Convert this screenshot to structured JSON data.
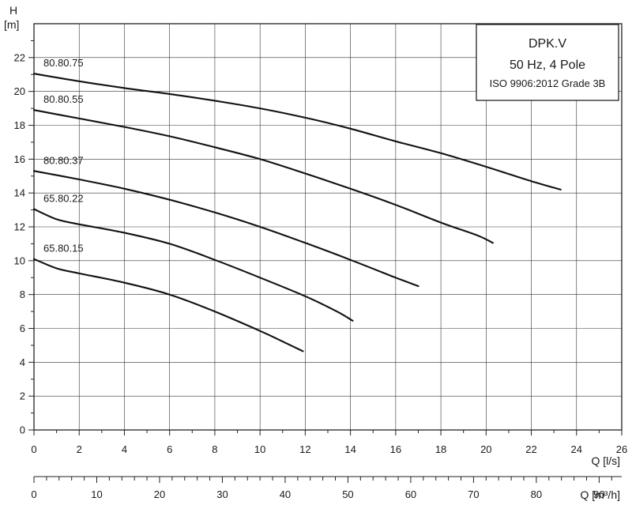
{
  "chart_data": {
    "type": "line",
    "title": "DPK.V",
    "info_lines": [
      "DPK.V",
      "50 Hz, 4 Pole",
      "ISO 9906:2012 Grade 3B"
    ],
    "ylabel_symbol": "H",
    "ylabel_unit": "[m]",
    "xlabel": "Q [l/s]",
    "x2label": "Q [m³/h]",
    "xlim": [
      0,
      26
    ],
    "ylim": [
      0,
      24
    ],
    "x_ticks": [
      0,
      2,
      4,
      6,
      8,
      10,
      12,
      14,
      16,
      18,
      20,
      22,
      24,
      26
    ],
    "y_ticks": [
      0,
      2,
      4,
      6,
      8,
      10,
      12,
      14,
      16,
      18,
      20,
      22
    ],
    "x2lim": [
      0,
      93.6
    ],
    "x2_ticks": [
      0,
      10,
      20,
      30,
      40,
      50,
      60,
      70,
      80,
      90
    ],
    "grid": true,
    "series": [
      {
        "name": "80.80.75",
        "x": [
          0,
          2,
          4,
          6,
          8,
          10,
          12,
          14,
          16,
          18,
          20,
          22,
          23.3
        ],
        "y": [
          21.05,
          20.6,
          20.2,
          19.85,
          19.45,
          19.0,
          18.45,
          17.8,
          17.05,
          16.35,
          15.55,
          14.7,
          14.2
        ]
      },
      {
        "name": "80.80.55",
        "x": [
          0,
          2,
          4,
          6,
          8,
          10,
          12,
          14,
          16,
          18,
          19.6,
          20.3
        ],
        "y": [
          18.9,
          18.4,
          17.9,
          17.35,
          16.7,
          16.0,
          15.15,
          14.25,
          13.3,
          12.25,
          11.5,
          11.05
        ]
      },
      {
        "name": "80.80.37",
        "x": [
          0,
          2,
          4,
          6,
          8,
          10,
          12,
          14,
          16,
          17.0
        ],
        "y": [
          15.3,
          14.8,
          14.25,
          13.6,
          12.85,
          12.0,
          11.05,
          10.05,
          9.0,
          8.5
        ]
      },
      {
        "name": "65.80.22",
        "x": [
          0,
          1,
          2,
          4,
          6,
          8,
          10,
          12,
          13.4,
          14.1
        ],
        "y": [
          13.05,
          12.45,
          12.15,
          11.65,
          11.0,
          10.05,
          9.0,
          7.9,
          7.0,
          6.45
        ]
      },
      {
        "name": "65.80.15",
        "x": [
          0,
          1,
          2,
          4,
          6,
          8,
          10,
          11.2,
          11.9
        ],
        "y": [
          10.1,
          9.55,
          9.25,
          8.7,
          8.0,
          7.0,
          5.85,
          5.1,
          4.65
        ]
      }
    ]
  }
}
